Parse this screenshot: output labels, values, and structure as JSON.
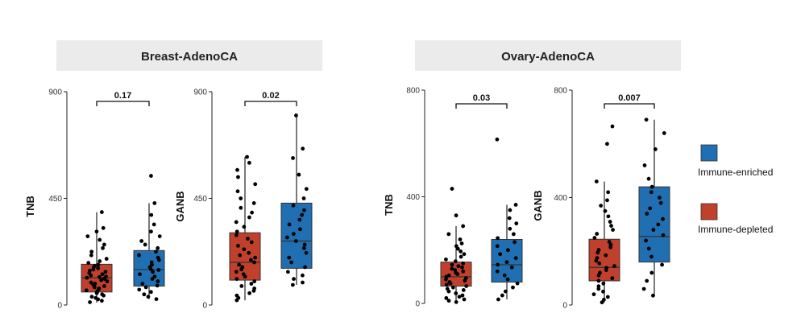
{
  "colors": {
    "immune_enriched": "#1f6fb2",
    "immune_depleted": "#c0402c",
    "strip": "#ebebeb",
    "point": "#000000"
  },
  "facets": [
    {
      "title": "Breast-AdenoCA"
    },
    {
      "title": "Ovary-AdenoCA"
    }
  ],
  "legend": [
    {
      "label": "Immune-enriched",
      "color": "#1f6fb2"
    },
    {
      "label": "Immune-depleted",
      "color": "#c0402c"
    }
  ],
  "chart_data": [
    {
      "type": "box",
      "facet": "Breast-AdenoCA",
      "ylabel": "TNB",
      "ylim": [
        0,
        900
      ],
      "yticks": [
        0,
        450,
        900
      ],
      "yticklabels": [
        "0",
        "450",
        "900"
      ],
      "pvalue": "0.17",
      "groups": [
        {
          "name": "Immune-depleted",
          "color": "#c0402c",
          "q1": 55,
          "median": 115,
          "q3": 172,
          "whisker_low": 10,
          "whisker_high": 392,
          "points": [
            12,
            18,
            24,
            30,
            35,
            40,
            45,
            50,
            55,
            58,
            62,
            65,
            70,
            75,
            80,
            85,
            90,
            95,
            100,
            105,
            110,
            112,
            115,
            118,
            120,
            125,
            130,
            135,
            140,
            145,
            150,
            155,
            160,
            165,
            170,
            178,
            185,
            195,
            210,
            225,
            240,
            255,
            275,
            290,
            310,
            325,
            392
          ]
        },
        {
          "name": "Immune-enriched",
          "color": "#1f6fb2",
          "q1": 80,
          "median": 150,
          "q3": 230,
          "whisker_low": 25,
          "whisker_high": 430,
          "points": [
            25,
            35,
            45,
            55,
            65,
            75,
            82,
            90,
            100,
            110,
            120,
            130,
            140,
            148,
            152,
            160,
            170,
            180,
            190,
            200,
            210,
            225,
            240,
            255,
            270,
            290,
            310,
            340,
            380,
            430,
            545
          ]
        }
      ]
    },
    {
      "type": "box",
      "facet": "Breast-AdenoCA",
      "ylabel": "GANB",
      "ylim": [
        0,
        900
      ],
      "yticks": [
        0,
        450,
        900
      ],
      "yticklabels": [
        "0",
        "450",
        "900"
      ],
      "pvalue": "0.02",
      "groups": [
        {
          "name": "Immune-depleted",
          "color": "#c0402c",
          "q1": 105,
          "median": 180,
          "q3": 305,
          "whisker_low": 20,
          "whisker_high": 625,
          "points": [
            20,
            30,
            40,
            50,
            60,
            70,
            80,
            90,
            100,
            110,
            120,
            130,
            140,
            150,
            160,
            170,
            180,
            190,
            200,
            210,
            220,
            235,
            250,
            265,
            280,
            295,
            310,
            330,
            350,
            370,
            390,
            410,
            430,
            450,
            480,
            510,
            540,
            570,
            600,
            625
          ]
        },
        {
          "name": "Immune-enriched",
          "color": "#1f6fb2",
          "q1": 155,
          "median": 270,
          "q3": 430,
          "whisker_low": 85,
          "whisker_high": 800,
          "points": [
            85,
            95,
            110,
            125,
            140,
            160,
            180,
            200,
            220,
            240,
            255,
            270,
            285,
            300,
            320,
            340,
            360,
            380,
            400,
            420,
            450,
            490,
            550,
            620,
            660,
            800
          ]
        }
      ]
    },
    {
      "type": "box",
      "facet": "Ovary-AdenoCA",
      "ylabel": "TNB",
      "ylim": [
        0,
        800
      ],
      "yticks": [
        0,
        400,
        800
      ],
      "yticklabels": [
        "0",
        "400",
        "800"
      ],
      "pvalue": "0.03",
      "groups": [
        {
          "name": "Immune-depleted",
          "color": "#c0402c",
          "q1": 65,
          "median": 100,
          "q3": 155,
          "whisker_low": 5,
          "whisker_high": 290,
          "points": [
            5,
            10,
            15,
            20,
            25,
            30,
            38,
            45,
            50,
            55,
            60,
            65,
            70,
            75,
            80,
            85,
            90,
            95,
            100,
            105,
            110,
            115,
            120,
            125,
            130,
            135,
            140,
            145,
            150,
            158,
            165,
            175,
            185,
            195,
            205,
            215,
            225,
            240,
            260,
            290,
            330,
            430
          ]
        },
        {
          "name": "Immune-enriched",
          "color": "#1f6fb2",
          "q1": 80,
          "median": 145,
          "q3": 240,
          "whisker_low": 15,
          "whisker_high": 370,
          "points": [
            15,
            30,
            45,
            60,
            75,
            90,
            105,
            120,
            135,
            145,
            155,
            170,
            185,
            200,
            215,
            230,
            245,
            260,
            280,
            300,
            320,
            350,
            370,
            615
          ]
        }
      ]
    },
    {
      "type": "box",
      "facet": "Ovary-AdenoCA",
      "ylabel": "GANB",
      "ylim": [
        0,
        800
      ],
      "yticks": [
        0,
        400,
        800
      ],
      "yticklabels": [
        "0",
        "400",
        "800"
      ],
      "pvalue": "0.007",
      "groups": [
        {
          "name": "Immune-depleted",
          "color": "#c0402c",
          "q1": 90,
          "median": 140,
          "q3": 245,
          "whisker_low": 10,
          "whisker_high": 460,
          "points": [
            10,
            20,
            30,
            40,
            50,
            60,
            70,
            80,
            90,
            100,
            110,
            120,
            130,
            138,
            145,
            155,
            165,
            175,
            185,
            195,
            205,
            215,
            225,
            235,
            250,
            265,
            280,
            295,
            310,
            330,
            350,
            370,
            390,
            420,
            460,
            600,
            665
          ]
        },
        {
          "name": "Immune-enriched",
          "color": "#1f6fb2",
          "q1": 160,
          "median": 255,
          "q3": 440,
          "whisker_low": 35,
          "whisker_high": 690,
          "points": [
            35,
            60,
            90,
            120,
            150,
            180,
            210,
            240,
            260,
            280,
            300,
            320,
            340,
            360,
            380,
            400,
            420,
            440,
            470,
            520,
            580,
            640,
            690
          ]
        }
      ]
    }
  ]
}
